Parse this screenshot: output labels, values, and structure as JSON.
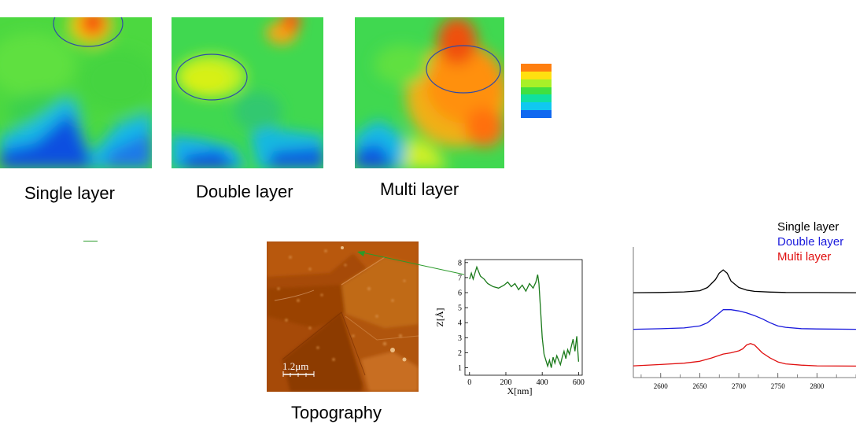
{
  "maps": [
    {
      "label": "Single layer"
    },
    {
      "label": "Double layer"
    },
    {
      "label": "Multi layer"
    }
  ],
  "colorbar": {
    "colors": [
      "#ff7f10",
      "#ffe010",
      "#a8f028",
      "#40e040",
      "#10e0a0",
      "#10c8f0",
      "#1068f0"
    ]
  },
  "topography": {
    "label": "Topography",
    "scalebar": "1.2μm"
  },
  "chart_data": [
    {
      "type": "line",
      "xlabel": "X[nm]",
      "ylabel": "Z[Å]",
      "xticks": [
        0,
        200,
        400,
        600
      ],
      "yticks": [
        1,
        2,
        3,
        4,
        5,
        6,
        7,
        8
      ],
      "xlim": [
        -25,
        620
      ],
      "ylim": [
        0.5,
        8.2
      ],
      "series": [
        {
          "color": "#1a7a1a",
          "x": [
            0,
            10,
            20,
            40,
            60,
            80,
            100,
            130,
            160,
            190,
            210,
            230,
            250,
            270,
            290,
            310,
            330,
            350,
            365,
            375,
            382,
            390,
            400,
            410,
            420,
            430,
            440,
            450,
            460,
            470,
            480,
            490,
            500,
            510,
            520,
            530,
            540,
            550,
            560,
            570,
            580,
            590,
            600
          ],
          "y": [
            6.9,
            7.3,
            6.9,
            7.7,
            7.1,
            6.9,
            6.6,
            6.4,
            6.3,
            6.5,
            6.7,
            6.4,
            6.6,
            6.2,
            6.5,
            6.1,
            6.6,
            6.3,
            6.7,
            7.2,
            6.6,
            5.0,
            3.0,
            1.9,
            1.5,
            1.1,
            1.5,
            1.0,
            1.7,
            1.3,
            1.8,
            1.5,
            1.2,
            1.7,
            2.1,
            1.6,
            2.2,
            1.9,
            2.4,
            2.9,
            2.1,
            3.1,
            1.4
          ]
        }
      ]
    },
    {
      "type": "line",
      "xticks": [
        2600,
        2650,
        2700,
        2750,
        2800
      ],
      "xlim": [
        2565,
        2850
      ],
      "ylim": [
        0,
        1
      ],
      "series": [
        {
          "name": "Single layer",
          "color": "#000000",
          "x": [
            2565,
            2600,
            2630,
            2650,
            2660,
            2670,
            2675,
            2680,
            2685,
            2690,
            2700,
            2710,
            2720,
            2740,
            2760,
            2800,
            2850
          ],
          "y": [
            0.65,
            0.652,
            0.656,
            0.665,
            0.69,
            0.75,
            0.8,
            0.825,
            0.8,
            0.74,
            0.69,
            0.67,
            0.66,
            0.655,
            0.652,
            0.651,
            0.65
          ]
        },
        {
          "name": "Double layer",
          "color": "#1a1adc",
          "x": [
            2565,
            2600,
            2630,
            2650,
            2660,
            2670,
            2680,
            2690,
            2700,
            2710,
            2720,
            2730,
            2740,
            2750,
            2760,
            2780,
            2800,
            2850
          ],
          "y": [
            0.37,
            0.374,
            0.38,
            0.395,
            0.42,
            0.47,
            0.52,
            0.52,
            0.51,
            0.495,
            0.475,
            0.45,
            0.42,
            0.395,
            0.385,
            0.375,
            0.372,
            0.37
          ]
        },
        {
          "name": "Multi layer",
          "color": "#e01010",
          "x": [
            2565,
            2600,
            2630,
            2650,
            2665,
            2680,
            2690,
            2700,
            2705,
            2710,
            2715,
            2720,
            2725,
            2730,
            2740,
            2750,
            2760,
            2780,
            2800,
            2850
          ],
          "y": [
            0.09,
            0.1,
            0.11,
            0.125,
            0.15,
            0.18,
            0.19,
            0.205,
            0.22,
            0.25,
            0.26,
            0.25,
            0.22,
            0.19,
            0.15,
            0.12,
            0.105,
            0.095,
            0.09,
            0.088
          ]
        }
      ]
    }
  ]
}
